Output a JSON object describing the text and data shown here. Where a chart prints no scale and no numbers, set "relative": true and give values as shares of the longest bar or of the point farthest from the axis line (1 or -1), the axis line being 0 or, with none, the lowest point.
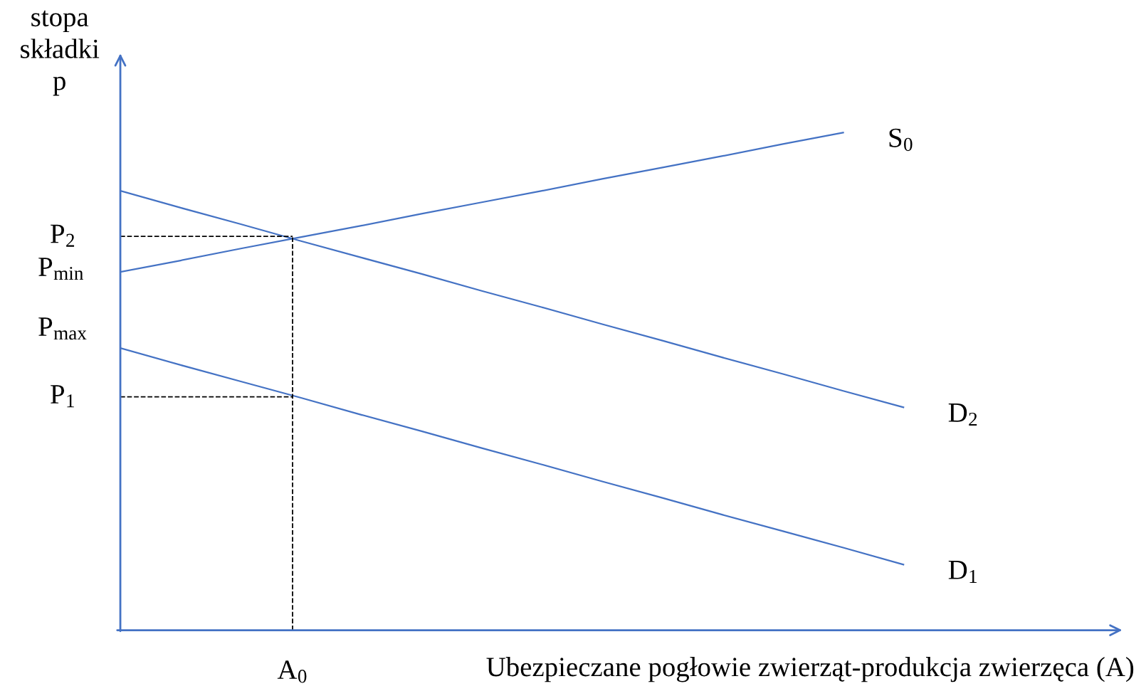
{
  "chart_data": {
    "type": "line",
    "relative": true,
    "xlabel": "Ubezpieczane pogłowie zwierząt-produkcja zwierzęca (A)",
    "ylabel": "stopa\nskładki\np",
    "categories": [
      null,
      null,
      null,
      null,
      null,
      null,
      null,
      null,
      null,
      null,
      null,
      null,
      null,
      null
    ],
    "marker": "none",
    "line_style": "solid",
    "series": [
      {
        "name": "S$_{0}$",
        "color": "#4472c4",
        "values": [
          0.72,
          0.743,
          0.767,
          0.79,
          0.813,
          0.837,
          0.86,
          0.883,
          0.907,
          0.93,
          0.953,
          0.977,
          1.0,
          null
        ]
      },
      {
        "name": "D$_{2}$",
        "color": "#4472c4",
        "values": [
          0.883,
          0.849,
          0.816,
          0.782,
          0.749,
          0.716,
          0.682,
          0.649,
          0.615,
          0.582,
          0.548,
          0.515,
          0.481,
          0.448
        ]
      },
      {
        "name": "D$_{1}$",
        "color": "#4472c4",
        "values": [
          0.567,
          0.533,
          0.5,
          0.467,
          0.433,
          0.4,
          0.366,
          0.333,
          0.299,
          0.266,
          0.232,
          0.199,
          0.166,
          0.132
        ]
      }
    ],
    "ref_lines": [
      {
        "axis": "y",
        "value": 0.7915,
        "label": "P$_{2}$",
        "color": "#000000",
        "line_style": "dashed"
      },
      {
        "axis": "y",
        "value": 0.469,
        "label": "P$_{1}$",
        "color": "#000000",
        "line_style": "dashed"
      }
    ],
    "annotations": [
      "P$_{min}$",
      "P$_{max}$",
      "A$_{0}$"
    ]
  }
}
